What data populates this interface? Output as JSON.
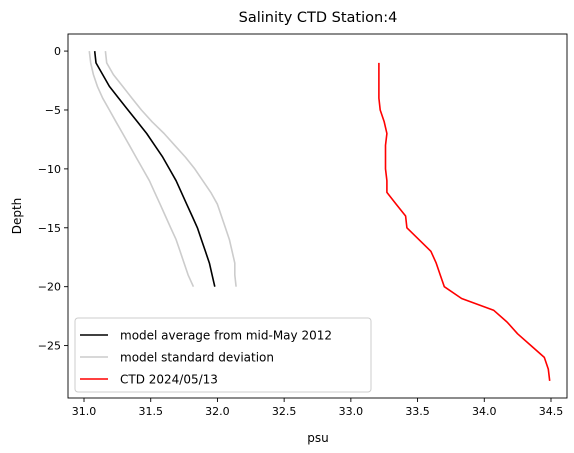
{
  "chart_data": {
    "type": "line",
    "title": "Salinity CTD Station:4",
    "xlabel": "psu",
    "ylabel": "Depth",
    "xlim": [
      30.88,
      34.62
    ],
    "ylim": [
      -29.45,
      1.45
    ],
    "xticks": [
      31.0,
      31.5,
      32.0,
      32.5,
      33.0,
      33.5,
      34.0,
      34.5
    ],
    "xtick_labels": [
      "31.0",
      "31.5",
      "32.0",
      "32.5",
      "33.0",
      "33.5",
      "34.0",
      "34.5"
    ],
    "yticks": [
      0,
      -5,
      -10,
      -15,
      -20,
      -25
    ],
    "ytick_labels": [
      "0",
      "−5",
      "−10",
      "−15",
      "−20",
      "−25"
    ],
    "grid": false,
    "legend_position": "lower-left",
    "series": [
      {
        "name": "model average from mid-May 2012",
        "color": "#000000",
        "points": [
          [
            31.08,
            0
          ],
          [
            31.09,
            -1
          ],
          [
            31.14,
            -2
          ],
          [
            31.19,
            -3
          ],
          [
            31.26,
            -4
          ],
          [
            31.33,
            -5
          ],
          [
            31.4,
            -6
          ],
          [
            31.47,
            -7
          ],
          [
            31.53,
            -8
          ],
          [
            31.59,
            -9
          ],
          [
            31.64,
            -10
          ],
          [
            31.69,
            -11
          ],
          [
            31.73,
            -12
          ],
          [
            31.77,
            -13
          ],
          [
            31.81,
            -14
          ],
          [
            31.85,
            -15
          ],
          [
            31.88,
            -16
          ],
          [
            31.91,
            -17
          ],
          [
            31.94,
            -18
          ],
          [
            31.96,
            -19
          ],
          [
            31.98,
            -20
          ]
        ]
      },
      {
        "name": "model standard deviation",
        "color": "#cccccc",
        "points": [
          [
            31.04,
            0
          ],
          [
            31.05,
            -1
          ],
          [
            31.07,
            -2
          ],
          [
            31.1,
            -3
          ],
          [
            31.14,
            -4
          ],
          [
            31.19,
            -5
          ],
          [
            31.24,
            -6
          ],
          [
            31.29,
            -7
          ],
          [
            31.34,
            -8
          ],
          [
            31.39,
            -9
          ],
          [
            31.44,
            -10
          ],
          [
            31.49,
            -11
          ],
          [
            31.53,
            -12
          ],
          [
            31.57,
            -13
          ],
          [
            31.61,
            -14
          ],
          [
            31.65,
            -15
          ],
          [
            31.69,
            -16
          ],
          [
            31.72,
            -17
          ],
          [
            31.75,
            -18
          ],
          [
            31.78,
            -19
          ],
          [
            31.82,
            -20
          ]
        ]
      },
      {
        "name": "model standard deviation (upper)",
        "color": "#cccccc",
        "points": [
          [
            31.16,
            0
          ],
          [
            31.17,
            -1
          ],
          [
            31.22,
            -2
          ],
          [
            31.29,
            -3
          ],
          [
            31.36,
            -4
          ],
          [
            31.43,
            -5
          ],
          [
            31.51,
            -6
          ],
          [
            31.6,
            -7
          ],
          [
            31.68,
            -8
          ],
          [
            31.76,
            -9
          ],
          [
            31.83,
            -10
          ],
          [
            31.89,
            -11
          ],
          [
            31.95,
            -12
          ],
          [
            32.0,
            -13
          ],
          [
            32.03,
            -14
          ],
          [
            32.06,
            -15
          ],
          [
            32.09,
            -16
          ],
          [
            32.11,
            -17
          ],
          [
            32.13,
            -18
          ],
          [
            32.13,
            -19
          ],
          [
            32.14,
            -20
          ]
        ]
      },
      {
        "name": "CTD 2024/05/13",
        "color": "#ff0000",
        "points": [
          [
            33.21,
            -1
          ],
          [
            33.21,
            -2
          ],
          [
            33.21,
            -3
          ],
          [
            33.21,
            -4
          ],
          [
            33.22,
            -5
          ],
          [
            33.25,
            -6
          ],
          [
            33.27,
            -7
          ],
          [
            33.26,
            -8
          ],
          [
            33.26,
            -9
          ],
          [
            33.26,
            -10
          ],
          [
            33.27,
            -11
          ],
          [
            33.27,
            -12
          ],
          [
            33.34,
            -13
          ],
          [
            33.41,
            -14
          ],
          [
            33.42,
            -15
          ],
          [
            33.51,
            -16
          ],
          [
            33.6,
            -17
          ],
          [
            33.64,
            -18
          ],
          [
            33.67,
            -19
          ],
          [
            33.7,
            -20
          ],
          [
            33.83,
            -21
          ],
          [
            34.07,
            -22
          ],
          [
            34.17,
            -23
          ],
          [
            34.25,
            -24
          ],
          [
            34.35,
            -25
          ],
          [
            34.45,
            -26
          ],
          [
            34.48,
            -27
          ],
          [
            34.49,
            -28
          ]
        ]
      }
    ],
    "legend": [
      {
        "label": "model average from mid-May 2012",
        "color": "#000000"
      },
      {
        "label": "model standard deviation",
        "color": "#cccccc"
      },
      {
        "label": "CTD 2024/05/13",
        "color": "#ff0000"
      }
    ]
  }
}
